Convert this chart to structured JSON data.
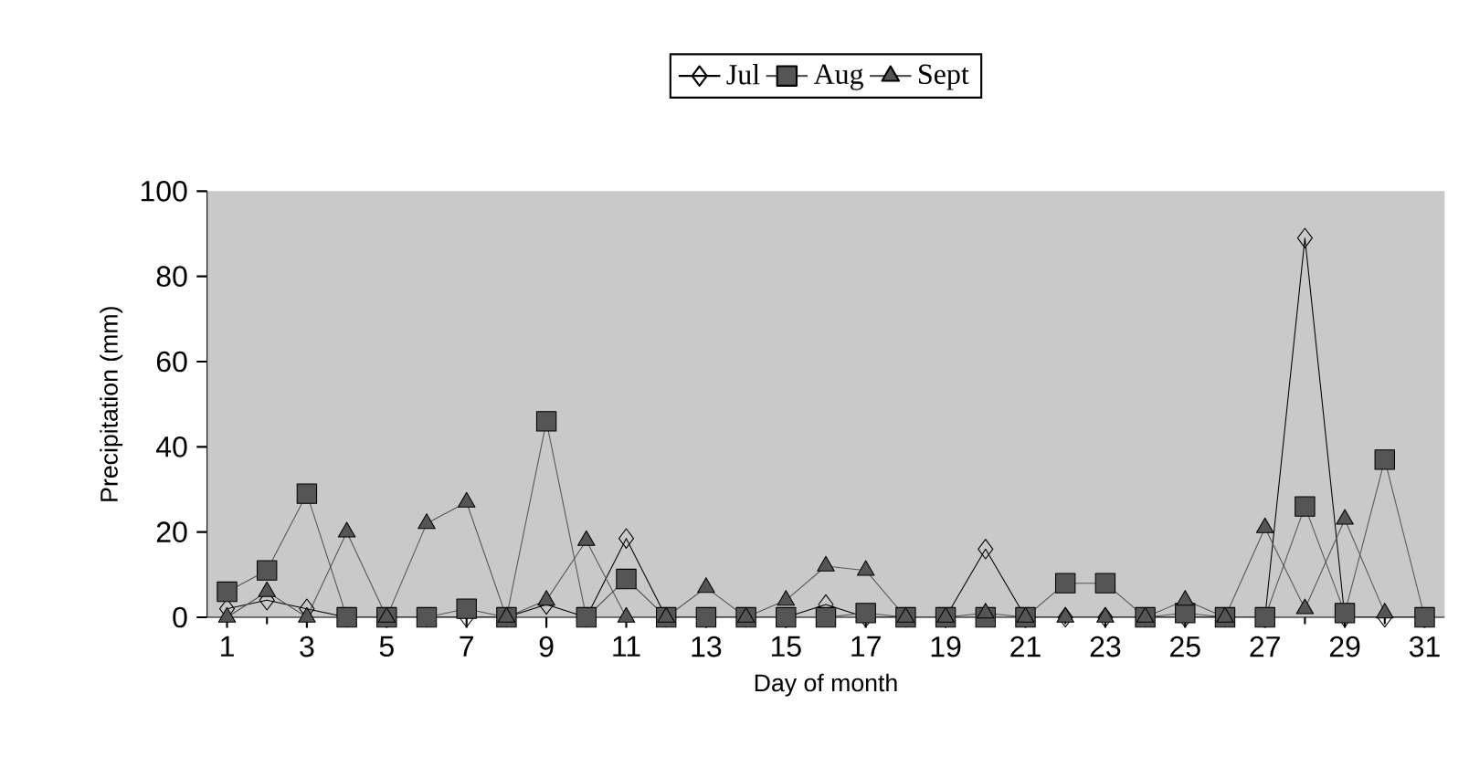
{
  "chart_data": {
    "type": "line",
    "xlabel": "Day of month",
    "ylabel": "Precipitation (mm)",
    "x": [
      1,
      2,
      3,
      4,
      5,
      6,
      7,
      8,
      9,
      10,
      11,
      12,
      13,
      14,
      15,
      16,
      17,
      18,
      19,
      20,
      21,
      22,
      23,
      24,
      25,
      26,
      27,
      28,
      29,
      30,
      31
    ],
    "xlim": [
      0.5,
      31.5
    ],
    "ylim": [
      0,
      100
    ],
    "xticks": [
      1,
      3,
      5,
      7,
      9,
      11,
      13,
      15,
      17,
      19,
      21,
      23,
      25,
      27,
      29,
      31
    ],
    "yticks": [
      0,
      20,
      40,
      60,
      80,
      100
    ],
    "legend": "top",
    "grid": false,
    "series": [
      {
        "name": "Jul",
        "color": "#000000",
        "marker": "diamond",
        "values": [
          2,
          4,
          2,
          0,
          0,
          0,
          0,
          0,
          3,
          0,
          18.5,
          0,
          0,
          0,
          0,
          3,
          0,
          0,
          0,
          16,
          0,
          0,
          0,
          0,
          0,
          0,
          0,
          89,
          0,
          0,
          0
        ]
      },
      {
        "name": "Aug",
        "color": "#555555",
        "marker": "square",
        "values": [
          6,
          11,
          29,
          0,
          0,
          0,
          2,
          0,
          46,
          0,
          9,
          0,
          0,
          0,
          0,
          0,
          1,
          0,
          0,
          0,
          0,
          8,
          8,
          0,
          1,
          0,
          0,
          26,
          1,
          37,
          0
        ]
      },
      {
        "name": "Sept",
        "color": "#555555",
        "marker": "triangle",
        "values": [
          0,
          6,
          0,
          20,
          0,
          22,
          27,
          0,
          4,
          18,
          0,
          0,
          7,
          0,
          4,
          12,
          11,
          0,
          0,
          1,
          0,
          0,
          0,
          0,
          4,
          0,
          21,
          2,
          23,
          1,
          null
        ]
      }
    ]
  }
}
